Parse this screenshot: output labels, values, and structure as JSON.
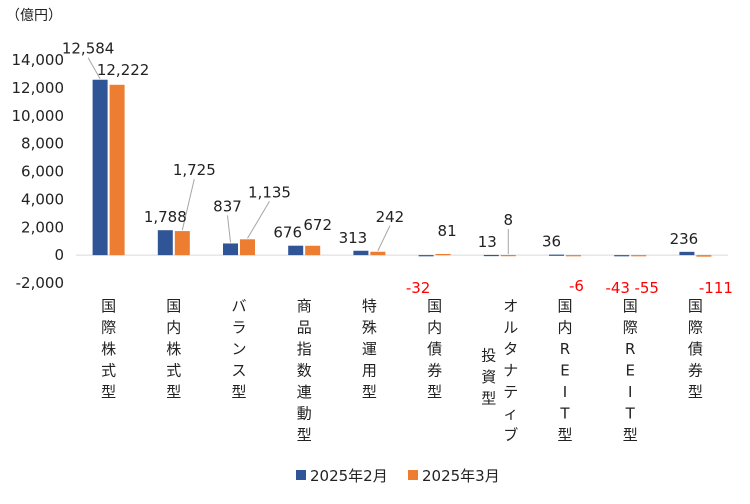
{
  "chart_data": {
    "type": "bar",
    "unit_label": "（億円）",
    "categories": [
      "国際株式型",
      "国内株式型",
      "バランス型",
      "商品指数連動型",
      "特殊運用型",
      "国内債券型",
      "オルタナティブ投資型",
      "国内REIT型",
      "国際REIT型",
      "国際債券型"
    ],
    "category_lines": [
      [
        "国際株式型"
      ],
      [
        "国内株式型"
      ],
      [
        "バランス型"
      ],
      [
        "商品指数連動型"
      ],
      [
        "特殊運用型"
      ],
      [
        "国内債券型"
      ],
      [
        "オルタナティブ",
        "投資型"
      ],
      [
        "国内REIT型"
      ],
      [
        "国際REIT型"
      ],
      [
        "国際債券型"
      ]
    ],
    "series": [
      {
        "name": "2025年2月",
        "color": "#2f5597",
        "values": [
          12584,
          1788,
          837,
          676,
          313,
          -32,
          13,
          36,
          -43,
          236
        ]
      },
      {
        "name": "2025年3月",
        "color": "#ed7d31",
        "values": [
          12222,
          1725,
          1135,
          672,
          242,
          81,
          8,
          -6,
          -55,
          -111
        ]
      }
    ],
    "data_labels": [
      [
        "12,584",
        "1,788",
        "837",
        "676",
        "313",
        "-32",
        "13",
        "36",
        "-43",
        "236"
      ],
      [
        "12,222",
        "1,725",
        "1,135",
        "672",
        "242",
        "81",
        "8",
        "-6",
        "-55",
        "-111"
      ]
    ],
    "y_ticks": [
      14000,
      12000,
      10000,
      8000,
      6000,
      4000,
      2000,
      0,
      -2000
    ],
    "y_tick_labels": [
      "14,000",
      "12,000",
      "10,000",
      "8,000",
      "6,000",
      "4,000",
      "2,000",
      "0",
      "-2,000"
    ],
    "ylim": [
      -2000,
      14000
    ],
    "negative_label_color": "#ff0000",
    "grid": false,
    "legend_position": "bottom"
  }
}
